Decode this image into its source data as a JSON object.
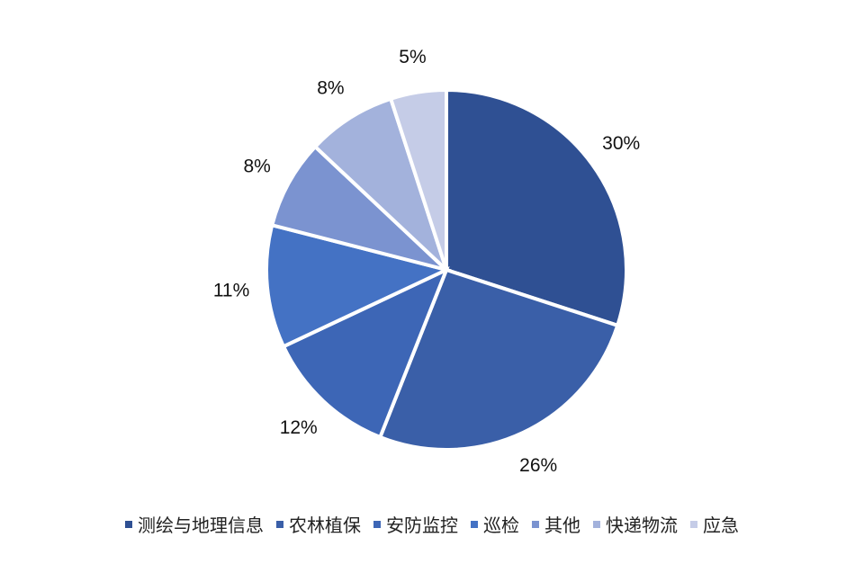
{
  "chart_data": {
    "type": "pie",
    "categories": [
      "测绘与地理信息",
      "农林植保",
      "安防监控",
      "巡检",
      "其他",
      "快递物流",
      "应急"
    ],
    "values": [
      30,
      26,
      12,
      11,
      8,
      8,
      5
    ],
    "labels": [
      "30%",
      "26%",
      "12%",
      "11%",
      "8%",
      "8%",
      "5%"
    ],
    "colors": [
      "#2f5093",
      "#3a5fa8",
      "#3d66b6",
      "#4472c4",
      "#7b93d0",
      "#a3b2dc",
      "#c5cce7"
    ],
    "start": "12 o'clock",
    "direction": "clockwise",
    "legend_position": "bottom"
  }
}
